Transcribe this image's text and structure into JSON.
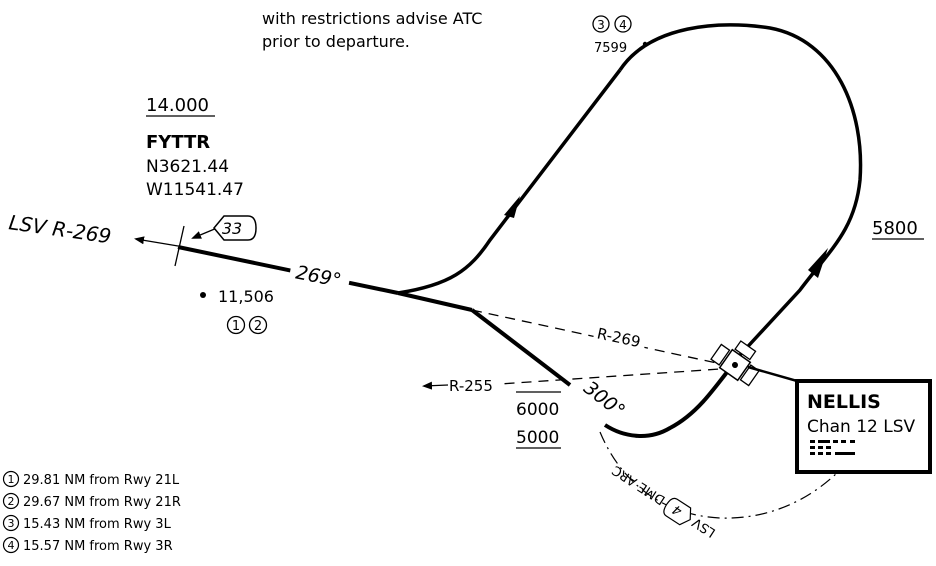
{
  "note": {
    "line1": "with restrictions advise ATC",
    "line2": "prior to departure."
  },
  "top_obstacle": {
    "circles": [
      "3",
      "4"
    ],
    "elevation": "7599"
  },
  "fix": {
    "altitude": "14.000",
    "name": "FYTTR",
    "lat": "N3621.44",
    "lon": "W11541.47",
    "radial_label": "LSV R-269",
    "dme": "33"
  },
  "course_label": "269°",
  "left_obstacle": {
    "elevation": "11,506",
    "circles": [
      "1",
      "2"
    ]
  },
  "radials": {
    "r269": "R-269",
    "r255": "R-255"
  },
  "course_300": "300°",
  "altitudes": {
    "upper": "6000",
    "lower": "5000",
    "right": "5800"
  },
  "arc_label": {
    "prefix": "LSV",
    "dme": "4",
    "text": "DME ARC"
  },
  "navaid": {
    "name": "NELLIS",
    "channel": "Chan 12 LSV"
  },
  "footnotes": [
    {
      "num": "1",
      "text": "29.81 NM from Rwy 21L"
    },
    {
      "num": "2",
      "text": "29.67 NM from Rwy 21R"
    },
    {
      "num": "3",
      "text": "15.43 NM from Rwy 3L"
    },
    {
      "num": "4",
      "text": "15.57 NM from Rwy 3R"
    }
  ]
}
